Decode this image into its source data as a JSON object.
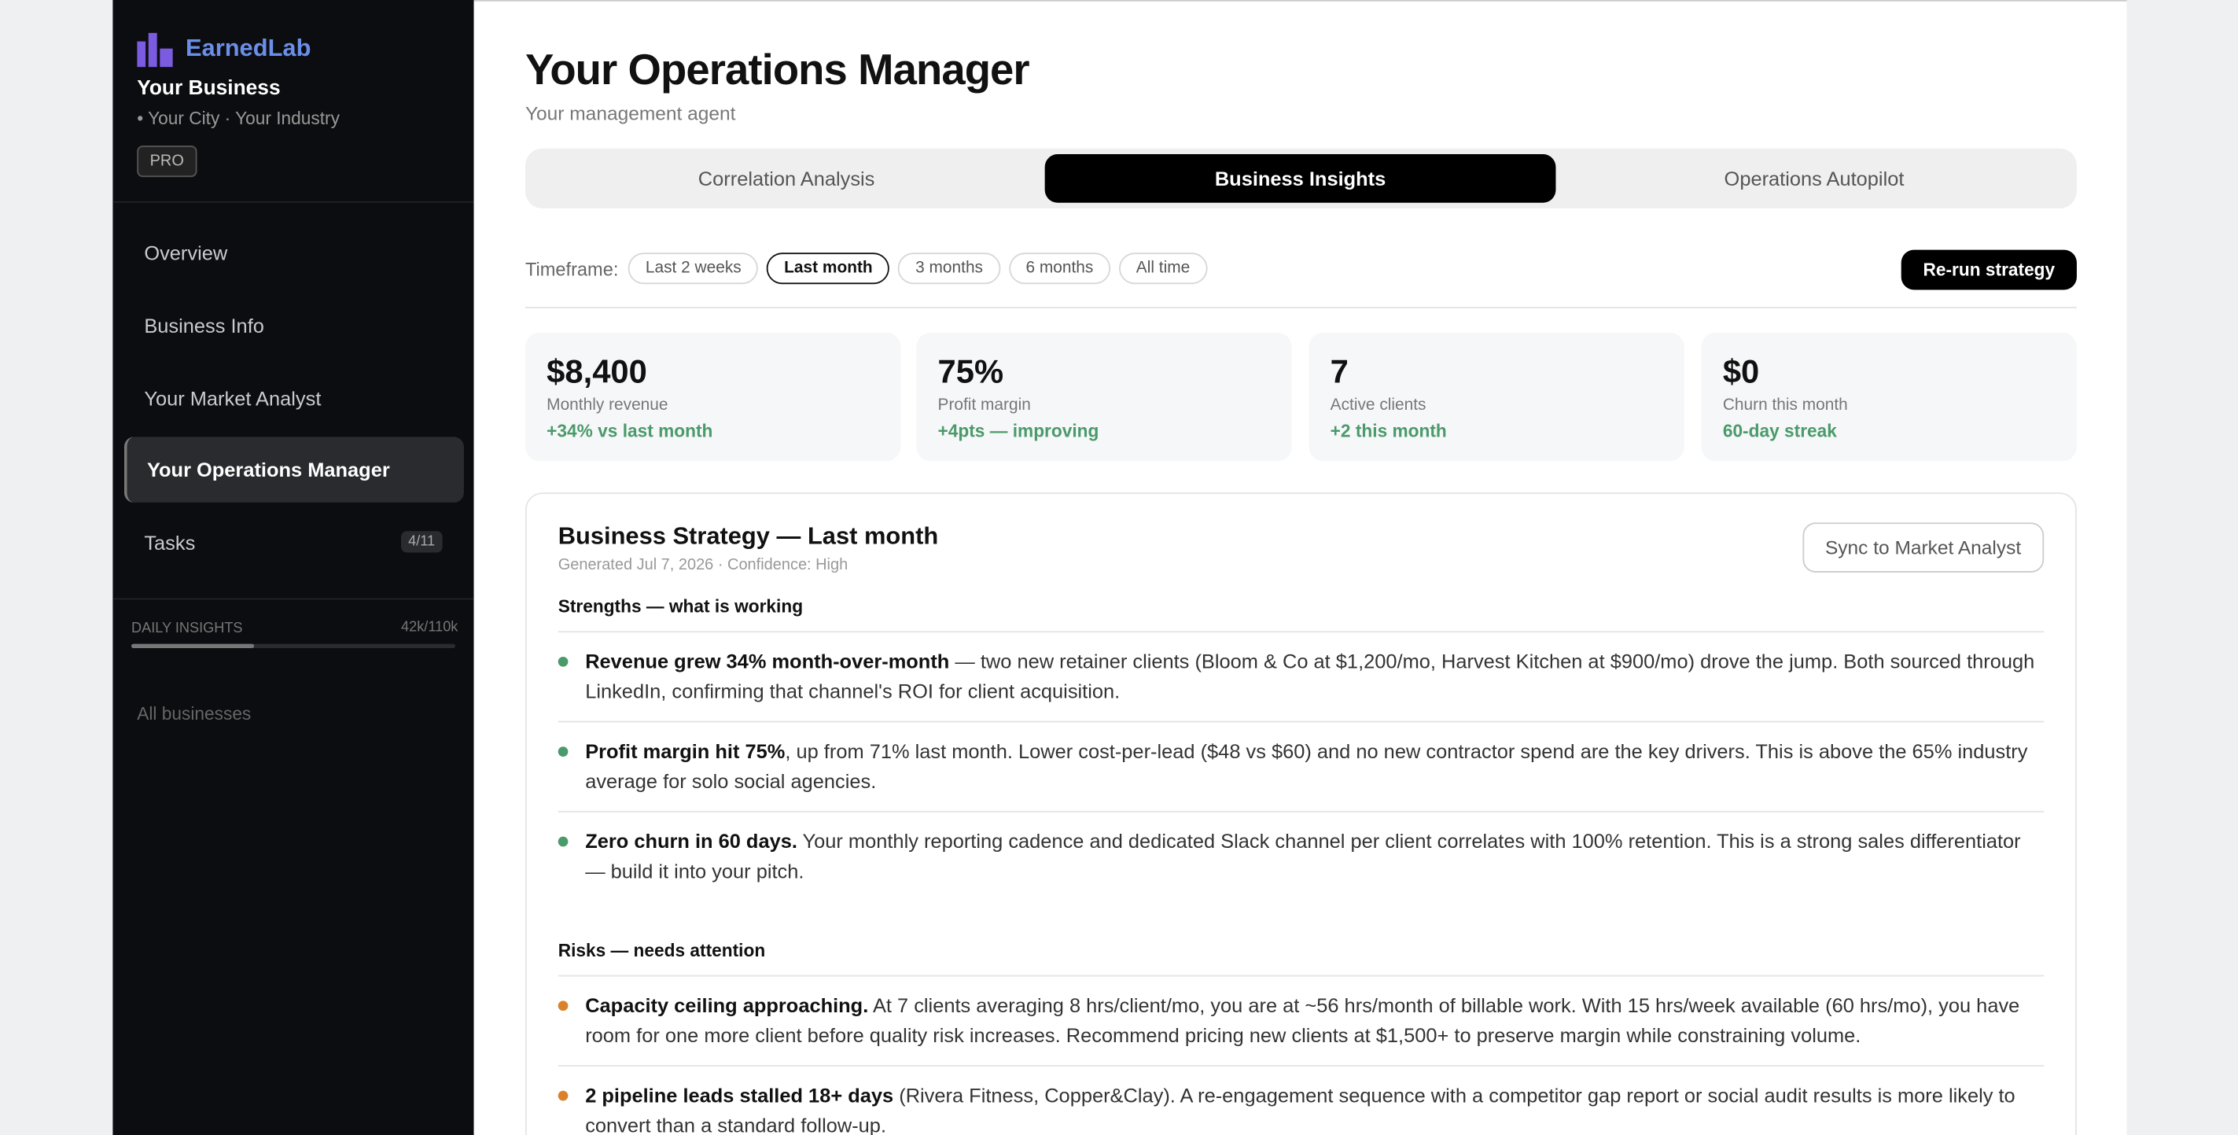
{
  "sidebar": {
    "brand": "EarnedLab",
    "business": "Your Business",
    "location": "Your City · Your Industry",
    "plan": "PRO",
    "nav": [
      "Overview",
      "Business Info",
      "Your Market Analyst",
      "Your Operations Manager",
      "Tasks"
    ],
    "tasks_badge": "4/11",
    "insights_label": "DAILY INSIGHTS",
    "insights_count": "42k/110k",
    "all_businesses": "All businesses"
  },
  "header": {
    "title": "Your Operations Manager",
    "subtitle": "Your management agent"
  },
  "tabs": [
    "Correlation Analysis",
    "Business Insights",
    "Operations Autopilot"
  ],
  "timeframe": {
    "label": "Timeframe:",
    "options": [
      "Last 2 weeks",
      "Last month",
      "3 months",
      "6 months",
      "All time"
    ],
    "button": "Re-run strategy"
  },
  "metrics": [
    {
      "value": "$8,400",
      "label": "Monthly revenue",
      "delta": "+34% vs last month"
    },
    {
      "value": "75%",
      "label": "Profit margin",
      "delta": "+4pts — improving"
    },
    {
      "value": "7",
      "label": "Active clients",
      "delta": "+2 this month"
    },
    {
      "value": "$0",
      "label": "Churn this month",
      "delta": "60-day streak"
    }
  ],
  "strategy": {
    "title": "Business Strategy — Last month",
    "meta": "Generated Jul 7, 2026 · Confidence: High",
    "sync": "Sync to Market Analyst",
    "sections": [
      {
        "heading": "Strengths — what is working",
        "items": [
          {
            "lead": "Revenue grew 34% month-over-month",
            "text": " — two new retainer clients (Bloom & Co at $1,200/mo, Harvest Kitchen at $900/mo) drove the jump. Both sourced through LinkedIn, confirming that channel's ROI for client acquisition."
          },
          {
            "lead": "Profit margin hit 75%",
            "text": ", up from 71% last month. Lower cost-per-lead ($48 vs $60) and no new contractor spend are the key drivers. This is above the 65% industry average for solo social agencies."
          },
          {
            "lead": "Zero churn in 60 days.",
            "text": " Your monthly reporting cadence and dedicated Slack channel per client correlates with 100% retention. This is a strong sales differentiator — build it into your pitch."
          }
        ]
      },
      {
        "heading": "Risks — needs attention",
        "items": [
          {
            "lead": "Capacity ceiling approaching.",
            "text": " At 7 clients averaging 8 hrs/client/mo, you are at ~56 hrs/month of billable work. With 15 hrs/week available (60 hrs/mo), you have room for one more client before quality risk increases. Recommend pricing new clients at $1,500+ to preserve margin while constraining volume."
          },
          {
            "lead": "2 pipeline leads stalled 18+ days",
            "text": " (Rivera Fitness, Copper&Clay). A re-engagement sequence with a competitor gap report or social audit results is more likely to convert than a standard follow-up."
          }
        ]
      }
    ]
  }
}
